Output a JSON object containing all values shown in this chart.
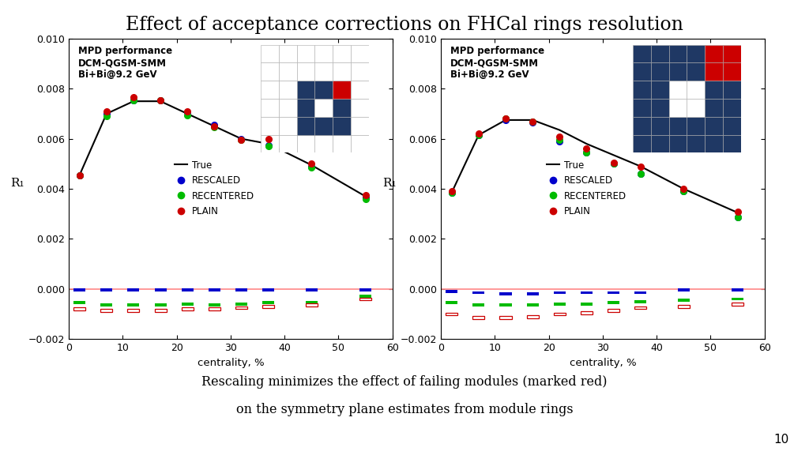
{
  "title": "Effect of acceptance corrections on FHCal rings resolution",
  "subtitle_line1": "Rescaling minimizes the effect of failing modules (marked red)",
  "subtitle_line2": "on the symmetry plane estimates from module rings",
  "page_num": "10",
  "label_info": "MPD performance\nDCM-QGSM-SMM\nBi+Bi@9.2 GeV",
  "xlabel": "centrality, %",
  "ylabel": "R₁",
  "ylim": [
    -0.002,
    0.01
  ],
  "xlim": [
    0,
    60
  ],
  "yticks": [
    -0.002,
    0,
    0.002,
    0.004,
    0.006,
    0.008,
    0.01
  ],
  "xticks": [
    0,
    10,
    20,
    30,
    40,
    50,
    60
  ],
  "plot1": {
    "true_x": [
      2,
      7,
      12,
      17,
      22,
      27,
      32,
      37,
      45,
      55
    ],
    "true_y": [
      0.00455,
      0.007,
      0.0075,
      0.0075,
      0.007,
      0.0065,
      0.006,
      0.0058,
      0.00495,
      0.0037
    ],
    "rescaled_x": [
      2,
      7,
      12,
      17,
      22,
      27,
      32,
      37,
      45,
      55
    ],
    "rescaled_y": [
      0.00455,
      0.007,
      0.00755,
      0.00755,
      0.00705,
      0.00655,
      0.006,
      0.00575,
      0.0049,
      0.00365
    ],
    "recentered_x": [
      2,
      7,
      12,
      17,
      22,
      27,
      32,
      37,
      45,
      55
    ],
    "recentered_y": [
      0.00455,
      0.0069,
      0.00755,
      0.00755,
      0.00695,
      0.00645,
      0.00595,
      0.0057,
      0.00485,
      0.0036
    ],
    "plain_x": [
      2,
      7,
      12,
      17,
      22,
      27,
      32,
      37,
      45,
      55
    ],
    "plain_y": [
      0.00455,
      0.0071,
      0.00765,
      0.00755,
      0.0071,
      0.0065,
      0.00595,
      0.006,
      0.005,
      0.00375
    ],
    "rescaled_res_x": [
      2,
      7,
      12,
      17,
      22,
      27,
      32,
      37,
      45,
      55
    ],
    "rescaled_res_y": [
      -5e-05,
      -5e-05,
      -5e-05,
      -5e-05,
      -5e-05,
      -5e-05,
      -5e-05,
      -5e-05,
      -5e-05,
      -5e-05
    ],
    "recentered_res_x": [
      2,
      7,
      12,
      17,
      22,
      27,
      32,
      37,
      45,
      55
    ],
    "recentered_res_y": [
      -0.00055,
      -0.00065,
      -0.00065,
      -0.00065,
      -0.0006,
      -0.00065,
      -0.0006,
      -0.00055,
      -0.00055,
      -0.0003
    ],
    "plain_res_x": [
      2,
      7,
      12,
      17,
      22,
      27,
      32,
      37,
      45,
      55
    ],
    "plain_res_y": [
      -0.0008,
      -0.00085,
      -0.00085,
      -0.00085,
      -0.0008,
      -0.0008,
      -0.00075,
      -0.0007,
      -0.00065,
      -0.0004
    ]
  },
  "plot2": {
    "true_x": [
      2,
      7,
      12,
      17,
      22,
      27,
      32,
      37,
      45,
      55
    ],
    "true_y": [
      0.00385,
      0.00615,
      0.00675,
      0.00675,
      0.00635,
      0.0058,
      0.00535,
      0.0049,
      0.004,
      0.00305
    ],
    "rescaled_x": [
      2,
      7,
      12,
      17,
      22,
      27,
      32,
      37,
      45,
      55
    ],
    "rescaled_y": [
      0.00385,
      0.00615,
      0.00675,
      0.00665,
      0.0059,
      0.00545,
      0.005,
      0.0046,
      0.0039,
      0.00285
    ],
    "recentered_x": [
      2,
      7,
      12,
      17,
      22,
      27,
      32,
      37,
      45,
      55
    ],
    "recentered_y": [
      0.00385,
      0.00615,
      0.0068,
      0.0067,
      0.00595,
      0.00545,
      0.005,
      0.0046,
      0.0039,
      0.00285
    ],
    "plain_x": [
      2,
      7,
      12,
      17,
      22,
      27,
      32,
      37,
      45,
      55
    ],
    "plain_y": [
      0.0039,
      0.0062,
      0.0068,
      0.0067,
      0.0061,
      0.0056,
      0.00505,
      0.0049,
      0.004,
      0.0031
    ],
    "rescaled_res_x": [
      2,
      7,
      12,
      17,
      22,
      27,
      32,
      37,
      45,
      55
    ],
    "rescaled_res_y": [
      -0.0001,
      -0.00015,
      -0.0002,
      -0.0002,
      -0.00015,
      -0.00015,
      -0.00015,
      -0.00015,
      -5e-05,
      -5e-05
    ],
    "recentered_res_x": [
      2,
      7,
      12,
      17,
      22,
      27,
      32,
      37,
      45,
      55
    ],
    "recentered_res_y": [
      -0.00055,
      -0.00065,
      -0.00065,
      -0.00065,
      -0.0006,
      -0.0006,
      -0.00055,
      -0.0005,
      -0.00045,
      -0.0004
    ],
    "plain_res_x": [
      2,
      7,
      12,
      17,
      22,
      27,
      32,
      37,
      45,
      55
    ],
    "plain_res_y": [
      -0.001,
      -0.00115,
      -0.00115,
      -0.0011,
      -0.001,
      -0.00095,
      -0.00085,
      -0.00075,
      -0.0007,
      -0.0006
    ]
  },
  "colors": {
    "rescaled": "#0000cc",
    "recentered": "#00bb00",
    "plain": "#cc0000",
    "true_line": "#000000",
    "red_line": "#ff8888",
    "dark_blue": "#1f3864",
    "red_square": "#cc0000",
    "grid_line": "#aaaaaa"
  }
}
